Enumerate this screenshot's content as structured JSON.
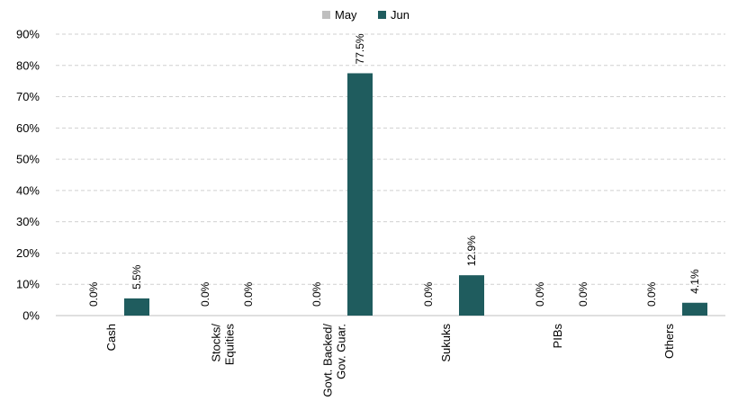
{
  "chart_data": {
    "type": "bar",
    "categories": [
      [
        "Cash"
      ],
      [
        "Stocks/",
        "Equities"
      ],
      [
        "Govt. Backed/",
        "Gov. Guar."
      ],
      [
        "Sukuks"
      ],
      [
        "PIBs"
      ],
      [
        "Others"
      ]
    ],
    "series": [
      {
        "name": "May",
        "values": [
          0.0,
          0.0,
          0.0,
          0.0,
          0.0,
          0.0
        ],
        "labels": [
          "0.0%",
          "0.0%",
          "0.0%",
          "0.0%",
          "0.0%",
          "0.0%"
        ],
        "color": "#bfbfbf"
      },
      {
        "name": "Jun",
        "values": [
          5.5,
          0.0,
          77.5,
          12.9,
          0.0,
          4.1
        ],
        "labels": [
          "5.5%",
          "0.0%",
          "77.5%",
          "12.9%",
          "0.0%",
          "4.1%"
        ],
        "color": "#1f5c5e"
      }
    ],
    "yticks": [
      "0%",
      "10%",
      "20%",
      "30%",
      "40%",
      "50%",
      "60%",
      "70%",
      "80%",
      "90%"
    ],
    "ylim": [
      0,
      90
    ],
    "grid": true,
    "legend_position": "top-center",
    "title": "",
    "xlabel": "",
    "ylabel": ""
  }
}
